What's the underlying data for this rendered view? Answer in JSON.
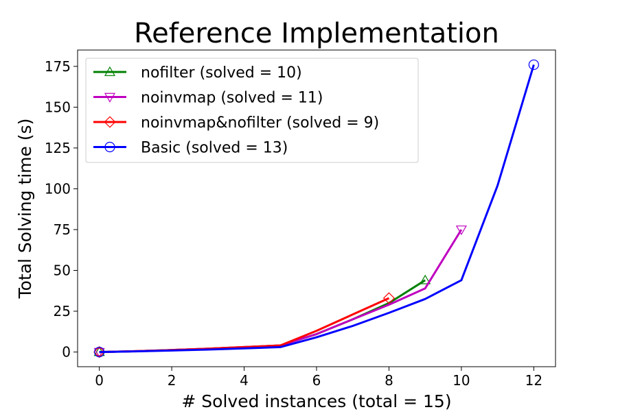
{
  "chart_data": {
    "type": "line",
    "title": "Reference Implementation",
    "xlabel": "# Solved instances (total = 15)",
    "ylabel": "Total Solving time (s)",
    "xlim": [
      -0.6,
      12.6
    ],
    "ylim": [
      -9,
      185
    ],
    "xticks": [
      0,
      2,
      4,
      6,
      8,
      10,
      12
    ],
    "yticks": [
      0,
      25,
      50,
      75,
      100,
      125,
      150,
      175
    ],
    "grid": false,
    "legend_position": "top-left",
    "series": [
      {
        "name": "nofilter (solved = 10)",
        "color": "#008000",
        "marker": "triangle-up",
        "x": [
          0,
          1,
          2,
          3,
          4,
          5,
          6,
          7,
          8,
          9
        ],
        "y": [
          0,
          0.5,
          1.2,
          2,
          3,
          4,
          11,
          20,
          30,
          44
        ]
      },
      {
        "name": "noinvmap (solved = 11)",
        "color": "#bf00bf",
        "marker": "triangle-down",
        "x": [
          0,
          1,
          2,
          3,
          4,
          5,
          6,
          7,
          8,
          9,
          10
        ],
        "y": [
          0,
          0.5,
          1.2,
          2,
          3,
          4,
          11,
          20,
          29,
          39,
          75
        ]
      },
      {
        "name": "noinvmap&nofilter (solved = 9)",
        "color": "#ff0000",
        "marker": "diamond",
        "x": [
          0,
          1,
          2,
          3,
          4,
          5,
          6,
          7,
          8
        ],
        "y": [
          0,
          0.5,
          1.2,
          2,
          3,
          4,
          13,
          23,
          33
        ]
      },
      {
        "name": "Basic (solved = 13)",
        "color": "#0000ff",
        "marker": "circle",
        "x": [
          0,
          1,
          2,
          3,
          4,
          5,
          6,
          7,
          8,
          9,
          10,
          11,
          12
        ],
        "y": [
          0,
          0.4,
          0.9,
          1.5,
          2.2,
          3,
          9,
          16,
          24,
          32.5,
          44,
          102,
          176
        ]
      }
    ]
  }
}
